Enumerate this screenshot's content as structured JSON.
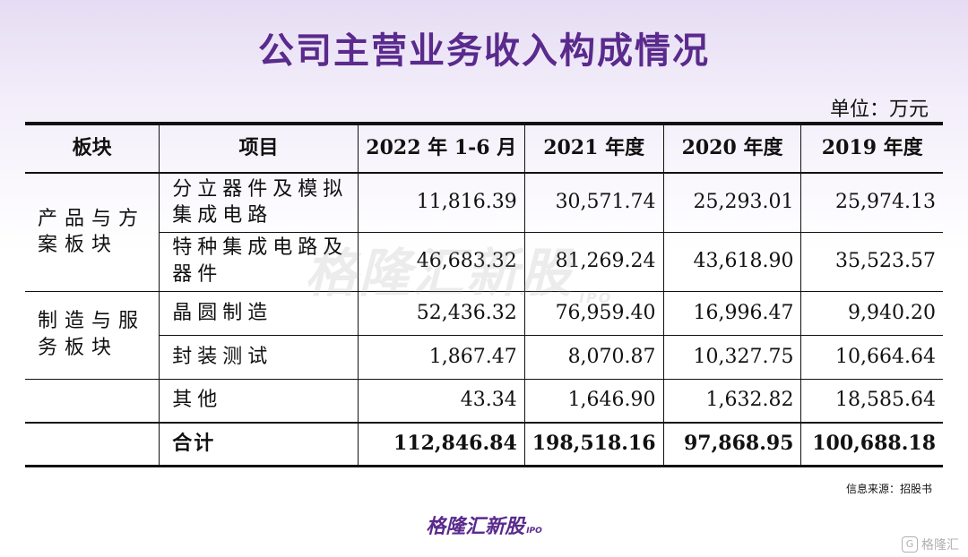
{
  "title": "公司主营业务收入构成情况",
  "unit": "单位：万元",
  "watermark": {
    "text": "格隆汇新股",
    "ipo": "IPO"
  },
  "table": {
    "headers": [
      "板块",
      "项目",
      "2022 年 1-6 月",
      "2021 年度",
      "2020 年度",
      "2019 年度"
    ],
    "segments": [
      "产品与方案板块",
      "制造与服务板块"
    ],
    "rows": [
      {
        "item": "分立器件及模拟集成电路",
        "values": [
          "11,816.39",
          "30,571.74",
          "25,293.01",
          "25,974.13"
        ]
      },
      {
        "item": "特种集成电路及器件",
        "values": [
          "46,683.32",
          "81,269.24",
          "43,618.90",
          "35,523.57"
        ]
      },
      {
        "item": "晶圆制造",
        "values": [
          "52,436.32",
          "76,959.40",
          "16,996.47",
          "9,940.20"
        ]
      },
      {
        "item": "封装测试",
        "values": [
          "1,867.47",
          "8,070.87",
          "10,327.75",
          "10,664.64"
        ]
      },
      {
        "item": "其他",
        "values": [
          "43.34",
          "1,646.90",
          "1,632.82",
          "18,585.64"
        ]
      }
    ],
    "total": {
      "item": "合计",
      "values": [
        "112,846.84",
        "198,518.16",
        "97,868.95",
        "100,688.18"
      ]
    }
  },
  "source": "信息来源：招股书",
  "brand": {
    "text": "格隆汇新股",
    "ipo": "IPO"
  },
  "corner_logo": {
    "glyph": "G",
    "text": "格隆汇"
  }
}
